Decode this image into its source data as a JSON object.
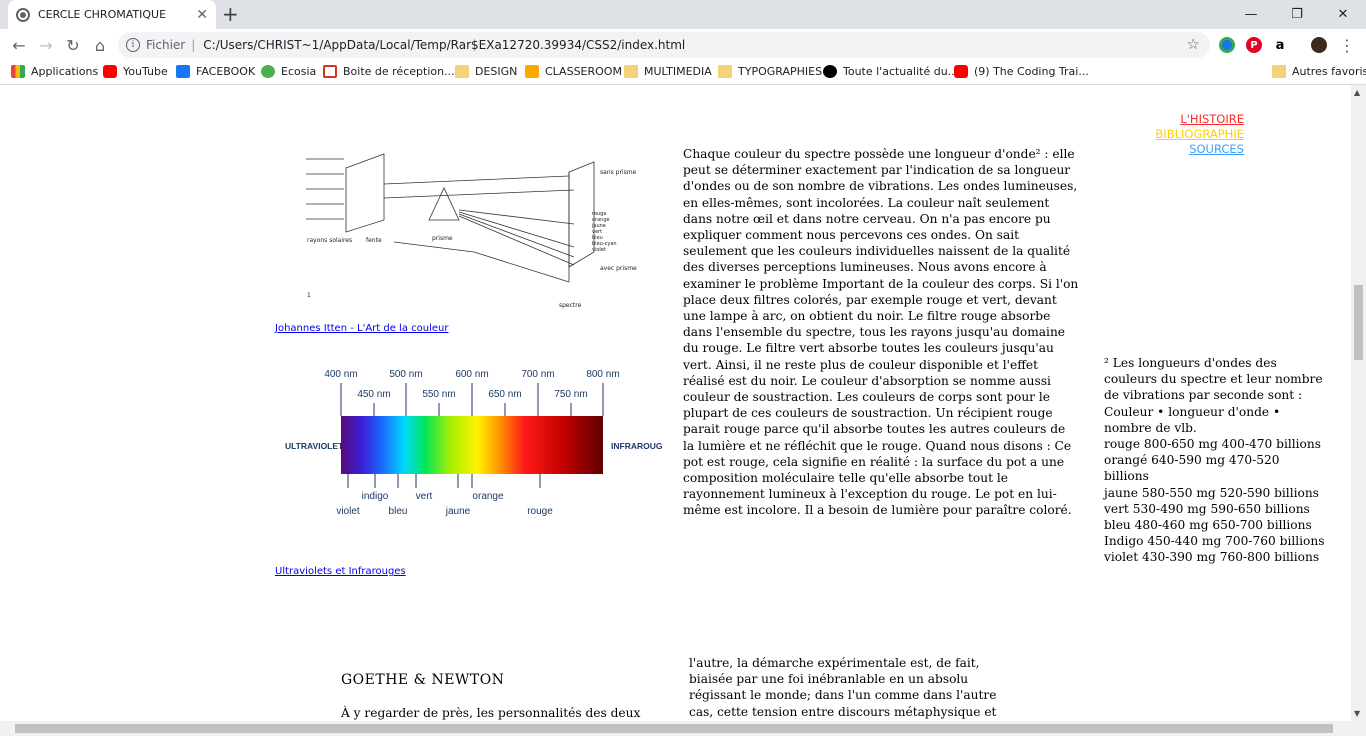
{
  "browser": {
    "tab_title": "CERCLE CHROMATIQUE",
    "url_scheme": "Fichier",
    "url": "C:/Users/CHRIST~1/AppData/Local/Temp/Rar$EXa12720.39934/CSS2/index.html"
  },
  "bookmarks": [
    {
      "label": "Applications",
      "icon": "apps-grid-icon",
      "color": "#ea4335"
    },
    {
      "label": "YouTube",
      "icon": "youtube-icon",
      "color": "#ff0000"
    },
    {
      "label": "FACEBOOK",
      "icon": "facebook-icon",
      "color": "#1877f2"
    },
    {
      "label": "Ecosia",
      "icon": "ecosia-icon",
      "color": "#4caf50"
    },
    {
      "label": "Boite de réception...",
      "icon": "gmail-icon",
      "color": "#d93025"
    },
    {
      "label": "DESIGN",
      "icon": "folder-icon",
      "color": "#f4d27a"
    },
    {
      "label": "CLASSEROOM",
      "icon": "classroom-icon",
      "color": "#f9ab00"
    },
    {
      "label": "MULTIMEDIA",
      "icon": "folder-icon",
      "color": "#f4d27a"
    },
    {
      "label": "TYPOGRAPHIES",
      "icon": "folder-icon",
      "color": "#f4d27a"
    },
    {
      "label": "Toute l'actualité du...",
      "icon": "news-icon",
      "color": "#000000"
    },
    {
      "label": "(9) The Coding Trai...",
      "icon": "youtube-icon",
      "color": "#ff0000"
    },
    {
      "label": "Autres favoris",
      "icon": "folder-icon",
      "color": "#f4d27a"
    }
  ],
  "page": {
    "figure1": {
      "caption": "Johannes Itten - L'Art de la couleur",
      "labels": {
        "rays": "rayons solaires",
        "slit": "fente",
        "prism": "prisme",
        "without_prism": "sans prisme",
        "with_prism": "avec prisme",
        "spectrum": "spectre",
        "number": "1",
        "colors": [
          "rouge",
          "orange",
          "jaune",
          "vert",
          "bleu",
          "bleu-cyan",
          "violet"
        ]
      }
    },
    "figure2": {
      "caption": "Ultraviolets et Infrarouges",
      "left_label": "ULTRAVIOLET",
      "right_label": "INFRAROUGE",
      "top_ticks": [
        "400 nm",
        "500 nm",
        "600 nm",
        "700 nm",
        "800 nm"
      ],
      "mid_ticks": [
        "450 nm",
        "550 nm",
        "650 nm",
        "750 nm"
      ],
      "bottom_row1": [
        "indigo",
        "vert",
        "orange"
      ],
      "bottom_row2": [
        "violet",
        "bleu",
        "jaune",
        "rouge"
      ]
    },
    "main_text": "Chaque couleur du spectre possède une longueur d'onde² : elle peut se déterminer exactement par l'indication de sa longueur d'ondes ou de son nombre de vibrations. Les ondes lumineuses, en elles-mêmes, sont incolorées. La couleur naît seulement dans notre œil et dans notre cerveau. On n'a pas encore pu expliquer comment nous percevons ces ondes. On sait seulement que les couleurs individuelles naissent de la qualité des diverses perceptions lumineuses. Nous avons encore à examiner le problème Important de la couleur des corps. Si l'on place deux filtres colorés, par exemple rouge et vert, devant une lampe à arc, on obtient du noir. Le filtre rouge absorbe dans l'ensemble du spectre, tous les rayons jusqu'au domaine du rouge. Le filtre vert absorbe toutes les couleurs jusqu'au vert. Ainsi, il ne reste plus de couleur disponible et l'effet réalisé est du noir. Le couleur d'absorption se nomme aussi couleur de soustraction. Les couleurs de corps sont pour le plupart de ces couleurs de soustraction. Un récipient rouge parait rouge parce qu'il absorbe toutes les autres couleurs de la lumière et ne réfléchit que le rouge. Quand nous disons : Ce pot est rouge, cela signifie en réalité : la surface du pot a une composition moléculaire telle qu'elle absorbe tout le rayonnement lumineux à l'exception du rouge. Le pot en lui-même est incolore. Il a besoin de lumière pour paraître coloré.",
    "nav": [
      {
        "label": "L'HISTOIRE",
        "color": "#ff2a2a"
      },
      {
        "label": "BIBLIOGRAPHIE",
        "color": "#ffd000"
      },
      {
        "label": "SOURCES",
        "color": "#3aa0ff"
      }
    ],
    "footnote": [
      "² Les longueurs d'ondes des couleurs du spectre et leur nombre de vibrations par seconde sont : Couleur • longueur d'onde • nombre de vlb.",
      "rouge 800-650 mg 400-470 billions",
      "orangé 640-590 mg 470-520 billions",
      "jaune 580-550 mg 520-590 billions",
      "vert 530-490 mg 590-650 billions",
      "bleu 480-460 mg 650-700 billions",
      "Indigo 450-440 mg 700-760 billions",
      "violet 430-390 mg 760-800 billions"
    ],
    "section_heading": "GOETHE & NEWTON",
    "section_intro": "À y regarder de près, les personnalités des deux",
    "section_col2": "l'autre, la démarche expérimentale est, de fait, biaisée par une foi inébranlable en un absolu régissant le monde; dans l'un comme dans l'autre cas, cette tension entre discours métaphysique et expérience est à la fois"
  }
}
